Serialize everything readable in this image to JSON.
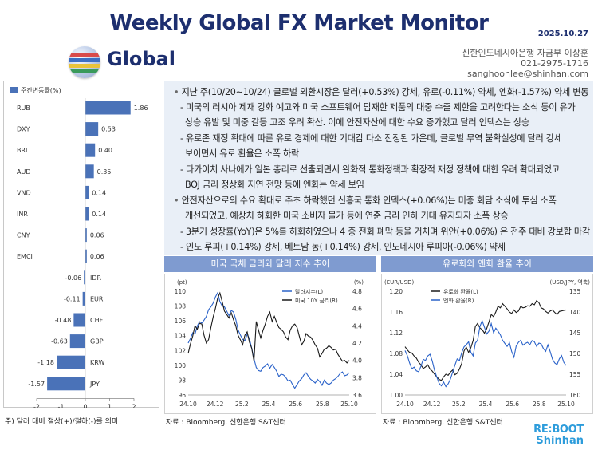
{
  "header": {
    "title": "Weekly Global FX Market Monitor",
    "date": "2025.10.27",
    "section": "Global",
    "author_line1": "신한인도네시아은행 자금부 이상훈",
    "author_phone": "021-2975-1716",
    "author_email": "sanghoonlee@shinhan.com"
  },
  "left_note": "주) 달러 대비 절상(+)/절하(-)를 의미",
  "bullets": [
    "지난 주(10/20~10/24) 글로벌 외환시장은 달러(+0.53%) 강세, 유로(-0.11%) 약세, 엔화(-1.57%) 약세 변동",
    "- 미국의 러시아 제재 강화 예고와 미국 소프트웨어 탑재한 제품의 대중 수출 제한을 고려한다는 소식 등이 유가",
    "상승 유발 및 미중 갈등 고조 우려 확산. 이에 안전자산에 대한 수요 증가했고 달러 인덱스는 상승",
    "- 유로존 재정 확대에 따른 유로 경제에 대한 기대감 다소 진정된 가운데, 글로벌 무역 불확실성에 달러 강세",
    "보이면서 유로 환율은 소폭 하락",
    "- 다카이치 사나에가 일본 총리로 선출되면서 완화적 통화정책과 확장적 재정 정책에 대한 우려 확대되었고",
    "BOJ 금리 정상화 지연 전망 등에 엔화는 약세 보임",
    "안전자산으로의 수요 확대로 주초 하락했던 신흥국 통화 인덱스(+0.06%)는 미중 회담 소식에 투심 소폭",
    "개선되었고, 예상치 하회한 미국 소비자 물가 등에 연준 금리 인하 기대 유지되자 소폭 상승",
    "- 3분기 성장률(YoY)은 5%를 하회하였으나 4 중 전회 폐막 등을 거치며 위안(+0.06%) 은 전주 대비 강보합 마감",
    "- 인도 루피(+0.14%) 강세, 베트남 동(+0.14%) 강세, 인도네시아 루피아(-0.06%) 약세"
  ],
  "panel1": {
    "title": "미국 국채 금리와 달러 지수 추이",
    "source": "자료 : Bloomberg, 신한은행 S&T센터"
  },
  "panel2": {
    "title": "유로화와 엔화 환율 추이",
    "source": "자료 : Bloomberg, 신한은행 S&T센터"
  },
  "logo": {
    "line1": "RE:BOOT",
    "line2": "Shinhan"
  },
  "chart_data": [
    {
      "type": "bar",
      "orientation": "horizontal",
      "legend": "주간변동률(%)",
      "categories": [
        "RUB",
        "DXY",
        "BRL",
        "AUD",
        "VND",
        "INR",
        "CNY",
        "EMCI",
        "IDR",
        "EUR",
        "CHF",
        "GBP",
        "KRW",
        "JPY"
      ],
      "values": [
        1.86,
        0.53,
        0.4,
        0.35,
        0.14,
        0.14,
        0.06,
        0.06,
        -0.06,
        -0.11,
        -0.48,
        -0.63,
        -1.18,
        -1.57
      ],
      "value_labels": [
        "1.86",
        "0.53",
        "0.40",
        "0.35",
        "0.14",
        "0.14",
        "0.06",
        "0.06",
        "-0.06",
        "-0.11",
        "-0.48",
        "-0.63",
        "-1.18",
        "-1.57"
      ],
      "xlim": [
        -2,
        2
      ],
      "xticks": [
        "-2",
        "-1",
        "0",
        "1",
        "2"
      ],
      "color": "#4a72b8"
    },
    {
      "type": "line",
      "x_ticks": [
        "24.10",
        "24.12",
        "25.2",
        "25.4",
        "25.6",
        "25.8",
        "25.10"
      ],
      "left_axis": {
        "unit": "(pt)",
        "ylim": [
          96,
          110
        ],
        "ticks": [
          "96",
          "98",
          "100",
          "102",
          "104",
          "106",
          "108",
          "110"
        ]
      },
      "right_axis": {
        "unit": "(%)",
        "ylim": [
          3.6,
          4.8
        ],
        "ticks": [
          "3.6",
          "3.8",
          "4.0",
          "4.2",
          "4.4",
          "4.6",
          "4.8"
        ]
      },
      "series": [
        {
          "name": "달러지수(L)",
          "axis": "left",
          "color": "#2a62c9",
          "values": [
            103.0,
            103.6,
            104.4,
            104.2,
            105.3,
            105.9,
            105.7,
            106.1,
            106.6,
            107.5,
            107.9,
            108.4,
            109.2,
            109.8,
            108.6,
            108.0,
            107.9,
            107.3,
            106.7,
            107.4,
            107.2,
            106.2,
            104.8,
            104.1,
            103.5,
            103.3,
            104.2,
            103.6,
            102.3,
            100.9,
            99.7,
            99.3,
            99.2,
            99.7,
            99.9,
            100.2,
            99.6,
            100.1,
            99.7,
            99.2,
            98.5,
            98.8,
            98.7,
            98.4,
            97.9,
            98.0,
            97.4,
            96.9,
            97.4,
            97.9,
            98.2,
            98.7,
            99.0,
            98.5,
            98.1,
            97.9,
            97.6,
            98.1,
            97.8,
            97.3,
            98.0,
            97.6,
            97.4,
            97.6,
            98.0,
            98.2,
            98.5,
            98.9,
            99.1,
            98.6,
            98.7,
            99.0
          ]
        },
        {
          "name": "미국 10Y 금리(R)",
          "axis": "right",
          "color": "#1a1a1a",
          "values": [
            4.08,
            4.19,
            4.28,
            4.4,
            4.36,
            4.43,
            4.42,
            4.29,
            4.2,
            4.24,
            4.38,
            4.5,
            4.6,
            4.72,
            4.78,
            4.68,
            4.57,
            4.53,
            4.49,
            4.55,
            4.47,
            4.4,
            4.29,
            4.24,
            4.18,
            4.29,
            4.33,
            4.21,
            4.14,
            3.99,
            4.45,
            4.35,
            4.26,
            4.35,
            4.42,
            4.51,
            4.56,
            4.45,
            4.51,
            4.44,
            4.38,
            4.36,
            4.33,
            4.27,
            4.24,
            4.35,
            4.4,
            4.42,
            4.38,
            4.28,
            4.18,
            4.22,
            4.31,
            4.28,
            4.27,
            4.23,
            4.18,
            4.14,
            4.04,
            4.08,
            4.13,
            4.14,
            4.17,
            4.15,
            4.12,
            4.13,
            4.07,
            4.03,
            3.99,
            4.0,
            3.97,
            4.0
          ]
        }
      ]
    },
    {
      "type": "line",
      "x_ticks": [
        "24.10",
        "24.12",
        "25.2",
        "25.4",
        "25.6",
        "25.8",
        "25.10"
      ],
      "left_axis": {
        "unit": "(EUR/USD)",
        "ylim": [
          1.0,
          1.2
        ],
        "ticks": [
          "1.00",
          "1.04",
          "1.08",
          "1.12",
          "1.16",
          "1.20"
        ]
      },
      "right_axis": {
        "unit": "(USD/JPY, 역축)",
        "ylim": [
          160,
          135
        ],
        "ticks": [
          "135",
          "140",
          "145",
          "150",
          "155",
          "160"
        ]
      },
      "series": [
        {
          "name": "유로화 환율(L)",
          "axis": "left",
          "color": "#1a1a1a",
          "values": [
            1.093,
            1.087,
            1.082,
            1.081,
            1.075,
            1.071,
            1.063,
            1.058,
            1.051,
            1.054,
            1.058,
            1.05,
            1.046,
            1.04,
            1.035,
            1.03,
            1.028,
            1.035,
            1.04,
            1.038,
            1.044,
            1.048,
            1.039,
            1.042,
            1.05,
            1.061,
            1.085,
            1.092,
            1.082,
            1.091,
            1.105,
            1.132,
            1.138,
            1.129,
            1.126,
            1.119,
            1.128,
            1.141,
            1.155,
            1.151,
            1.16,
            1.171,
            1.168,
            1.176,
            1.171,
            1.166,
            1.16,
            1.157,
            1.164,
            1.159,
            1.162,
            1.171,
            1.168,
            1.169,
            1.172,
            1.171,
            1.176,
            1.174,
            1.182,
            1.178,
            1.168,
            1.166,
            1.161,
            1.158,
            1.162,
            1.164,
            1.159,
            1.155,
            1.161,
            1.162,
            1.163,
            1.164
          ]
        },
        {
          "name": "엔화 환율(R)",
          "axis": "right",
          "color": "#2a62c9",
          "values": [
            149.3,
            150.5,
            152.3,
            153.7,
            153.3,
            154.2,
            154.4,
            153.1,
            151.4,
            151.7,
            150.6,
            150.2,
            151.8,
            154.1,
            155.7,
            157.2,
            157.8,
            156.9,
            158.0,
            157.3,
            156.2,
            154.5,
            152.8,
            151.3,
            151.7,
            149.8,
            148.4,
            147.9,
            147.2,
            149.7,
            150.6,
            147.5,
            146.8,
            143.5,
            142.1,
            143.7,
            145.3,
            144.6,
            142.8,
            145.0,
            143.9,
            144.6,
            145.5,
            146.8,
            147.6,
            148.3,
            147.4,
            149.5,
            150.9,
            148.2,
            147.3,
            146.8,
            148.0,
            147.6,
            147.3,
            147.9,
            146.9,
            147.2,
            148.3,
            147.5,
            147.7,
            148.8,
            149.5,
            147.9,
            149.6,
            151.4,
            152.3,
            152.7,
            151.3,
            150.5,
            152.2,
            152.9
          ]
        }
      ]
    }
  ]
}
